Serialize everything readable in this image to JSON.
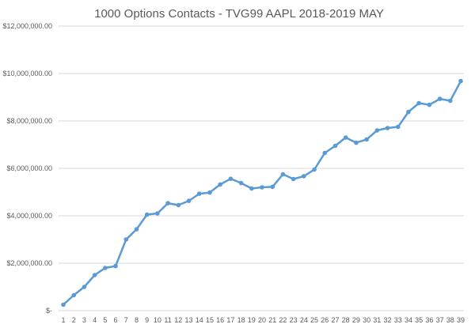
{
  "chart_data": {
    "type": "line",
    "title": "1000 Options Contacts - TVG99 AAPL 2018-2019 MAY",
    "xlabel": "",
    "ylabel": "",
    "x": [
      1,
      2,
      3,
      4,
      5,
      6,
      7,
      8,
      9,
      10,
      11,
      12,
      13,
      14,
      15,
      16,
      17,
      18,
      19,
      20,
      21,
      22,
      23,
      24,
      25,
      26,
      27,
      28,
      29,
      30,
      31,
      32,
      33,
      34,
      35,
      36,
      37,
      38,
      39
    ],
    "y_tick_labels": [
      "$-",
      "$2,000,000.00",
      "$4,000,000.00",
      "$6,000,000.00",
      "$8,000,000.00",
      "$10,000,000.00",
      "$12,000,000.00"
    ],
    "y_ticks": [
      0,
      2000000,
      4000000,
      6000000,
      8000000,
      10000000,
      12000000
    ],
    "ylim": [
      0,
      12000000
    ],
    "grid": true,
    "legend": "none",
    "series": [
      {
        "color": "#5b9bd5",
        "values": [
          250000,
          650000,
          1000000,
          1500000,
          1800000,
          1880000,
          3000000,
          3430000,
          4050000,
          4100000,
          4530000,
          4450000,
          4630000,
          4930000,
          4980000,
          5320000,
          5560000,
          5380000,
          5150000,
          5200000,
          5220000,
          5750000,
          5550000,
          5670000,
          5950000,
          6650000,
          6950000,
          7300000,
          7080000,
          7220000,
          7600000,
          7700000,
          7750000,
          8380000,
          8750000,
          8680000,
          8930000,
          8850000,
          9680000
        ]
      }
    ]
  }
}
